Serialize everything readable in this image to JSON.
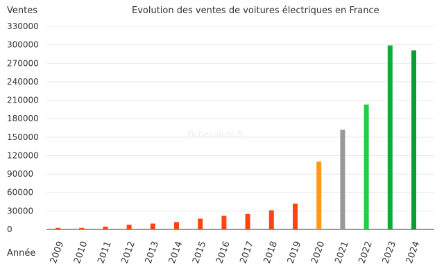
{
  "chart_data": {
    "type": "bar",
    "title": "Evolution des ventes de voitures électriques en France",
    "ylabel": "Ventes",
    "xlabel": "Année",
    "watermark": "Fiches-auto.fr",
    "categories": [
      "2009",
      "2010",
      "2011",
      "2012",
      "2013",
      "2014",
      "2015",
      "2016",
      "2017",
      "2018",
      "2019",
      "2020",
      "2021",
      "2022",
      "2023",
      "2024"
    ],
    "values": [
      2500,
      2500,
      4500,
      7500,
      9500,
      12000,
      17500,
      22000,
      25000,
      31000,
      42000,
      110000,
      162000,
      203000,
      299000,
      291000
    ],
    "colors": [
      "#ff4411",
      "#ff4411",
      "#ff4411",
      "#ff4411",
      "#ff4411",
      "#ff4411",
      "#ff4411",
      "#ff4411",
      "#ff4411",
      "#ff4411",
      "#ff4411",
      "#ff9911",
      "#999999",
      "#22cc44",
      "#11aa33",
      "#119933"
    ],
    "ylim": [
      0,
      330000
    ],
    "yticks": [
      "0",
      "30000",
      "60000",
      "90000",
      "120000",
      "150000",
      "180000",
      "210000",
      "240000",
      "270000",
      "300000",
      "330000"
    ],
    "grid": true
  }
}
